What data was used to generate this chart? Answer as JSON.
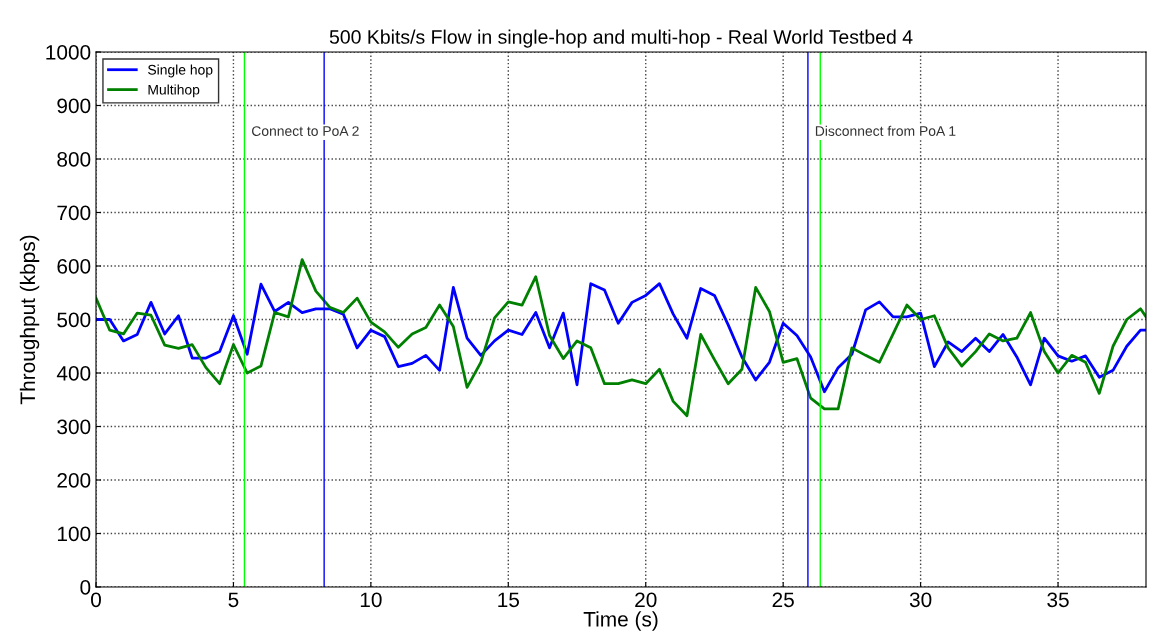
{
  "chart_data": {
    "type": "line",
    "title": "500 Kbits/s Flow in single-hop and multi-hop - Real World Testbed 4",
    "xlabel": "Time (s)",
    "ylabel": "Throughput (kbps)",
    "x": [
      0,
      0.5,
      1,
      1.5,
      2,
      2.5,
      3,
      3.5,
      4,
      4.5,
      5,
      5.5,
      6,
      6.5,
      7,
      7.5,
      8,
      8.5,
      9,
      9.5,
      10,
      10.5,
      11,
      11.5,
      12,
      12.5,
      13,
      13.5,
      14,
      14.5,
      15,
      15.5,
      16,
      16.5,
      17,
      17.5,
      18,
      18.5,
      19,
      19.5,
      20,
      20.5,
      21,
      21.5,
      22,
      22.5,
      23,
      23.5,
      24,
      24.5,
      25,
      25.5,
      26,
      26.5,
      27,
      27.5,
      28,
      28.5,
      29,
      29.5,
      30,
      30.5,
      31,
      31.5,
      32,
      32.5,
      33,
      33.5,
      34,
      34.5,
      35,
      35.5,
      36,
      36.5,
      37,
      37.5,
      38,
      38.2
    ],
    "series": [
      {
        "name": "Single hop",
        "color": "#0000ff",
        "values": [
          500,
          500,
          460,
          472,
          532,
          473,
          507,
          428,
          428,
          440,
          507,
          435,
          566,
          515,
          532,
          513,
          520,
          520,
          510,
          447,
          480,
          468,
          412,
          418,
          433,
          405,
          560,
          465,
          433,
          460,
          480,
          472,
          513,
          447,
          512,
          378,
          567,
          555,
          493,
          532,
          545,
          567,
          510,
          465,
          558,
          545,
          490,
          430,
          387,
          420,
          493,
          470,
          430,
          365,
          410,
          435,
          518,
          533,
          505,
          505,
          512,
          412,
          458,
          440,
          465,
          440,
          472,
          430,
          378,
          465,
          432,
          422,
          432,
          392,
          405,
          450,
          480,
          480
        ]
      },
      {
        "name": "Multihop",
        "color": "#008000",
        "values": [
          540,
          480,
          473,
          512,
          508,
          452,
          446,
          453,
          410,
          380,
          453,
          400,
          413,
          513,
          505,
          612,
          553,
          523,
          513,
          540,
          495,
          477,
          448,
          473,
          485,
          527,
          487,
          373,
          420,
          503,
          533,
          527,
          580,
          470,
          427,
          460,
          447,
          380,
          380,
          387,
          380,
          407,
          347,
          320,
          472,
          425,
          380,
          407,
          560,
          515,
          420,
          427,
          353,
          333,
          333,
          447,
          433,
          420,
          473,
          527,
          500,
          507,
          447,
          413,
          440,
          473,
          460,
          465,
          513,
          440,
          400,
          433,
          420,
          362,
          450,
          500,
          520,
          505
        ]
      }
    ],
    "ref_lines": [
      {
        "axis": "x",
        "value": 5.4,
        "color": "#00ff00",
        "label": "Connect to PoA 2"
      },
      {
        "axis": "x",
        "value": 8.3,
        "color": "#0000ff"
      },
      {
        "axis": "x",
        "value": 25.9,
        "color": "#0000ff",
        "label": "Disconnect from PoA 1"
      },
      {
        "axis": "x",
        "value": 26.35,
        "color": "#00ff00"
      }
    ],
    "xlim": [
      0,
      38.2
    ],
    "ylim": [
      0,
      1000
    ],
    "xticks": [
      0,
      5,
      10,
      15,
      20,
      25,
      30,
      35
    ],
    "yticks": [
      0,
      100,
      200,
      300,
      400,
      500,
      600,
      700,
      800,
      900,
      1000
    ],
    "grid": true,
    "legend": "top left",
    "line_style": "solid"
  }
}
